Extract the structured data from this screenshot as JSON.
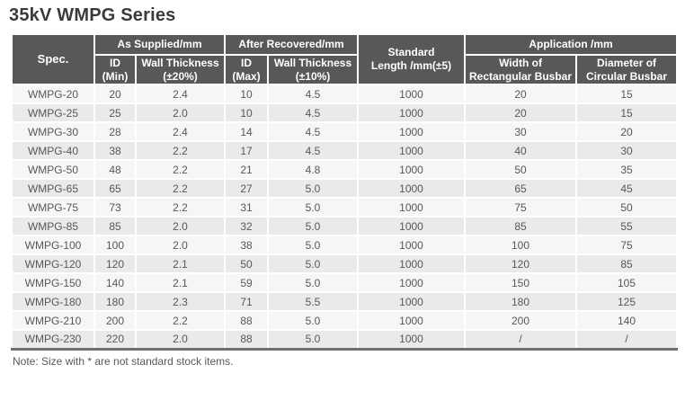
{
  "page": {
    "title": "35kV WMPG Series",
    "note": "Note: Size with * are not standard stock items."
  },
  "colors": {
    "header_bg": "#595757",
    "row_light": "#f6f6f6",
    "row_dark": "#e9eaeb",
    "body_text": "#595757",
    "title_text": "#3a3a3a",
    "bottom_border": "#717071"
  },
  "table": {
    "header": {
      "spec": "Spec.",
      "as_supplied": "As Supplied/mm",
      "after_recovered": "After Recovered/mm",
      "standard_length": "Standard\nLength /mm(±5)",
      "application": "Application /mm",
      "id_min": "ID\n(Min)",
      "wall_20": "Wall Thickness\n(±20%)",
      "id_max": "ID\n(Max)",
      "wall_10": "Wall Thickness\n(±10%)",
      "width_rect": "Width of\nRectangular Busbar",
      "dia_circ": "Diameter of\nCircular Busbar"
    },
    "rows": [
      [
        "WMPG-20",
        "20",
        "2.4",
        "10",
        "4.5",
        "1000",
        "20",
        "15"
      ],
      [
        "WMPG-25",
        "25",
        "2.0",
        "10",
        "4.5",
        "1000",
        "20",
        "15"
      ],
      [
        "WMPG-30",
        "28",
        "2.4",
        "14",
        "4.5",
        "1000",
        "30",
        "20"
      ],
      [
        "WMPG-40",
        "38",
        "2.2",
        "17",
        "4.5",
        "1000",
        "40",
        "30"
      ],
      [
        "WMPG-50",
        "48",
        "2.2",
        "21",
        "4.8",
        "1000",
        "50",
        "35"
      ],
      [
        "WMPG-65",
        "65",
        "2.2",
        "27",
        "5.0",
        "1000",
        "65",
        "45"
      ],
      [
        "WMPG-75",
        "73",
        "2.2",
        "31",
        "5.0",
        "1000",
        "75",
        "50"
      ],
      [
        "WMPG-85",
        "85",
        "2.0",
        "32",
        "5.0",
        "1000",
        "85",
        "55"
      ],
      [
        "WMPG-100",
        "100",
        "2.0",
        "38",
        "5.0",
        "1000",
        "100",
        "75"
      ],
      [
        "WMPG-120",
        "120",
        "2.1",
        "50",
        "5.0",
        "1000",
        "120",
        "85"
      ],
      [
        "WMPG-150",
        "140",
        "2.1",
        "59",
        "5.0",
        "1000",
        "150",
        "105"
      ],
      [
        "WMPG-180",
        "180",
        "2.3",
        "71",
        "5.5",
        "1000",
        "180",
        "125"
      ],
      [
        "WMPG-210",
        "200",
        "2.2",
        "88",
        "5.0",
        "1000",
        "200",
        "140"
      ],
      [
        "WMPG-230",
        "220",
        "2.0",
        "88",
        "5.0",
        "1000",
        "/",
        "/"
      ]
    ]
  }
}
